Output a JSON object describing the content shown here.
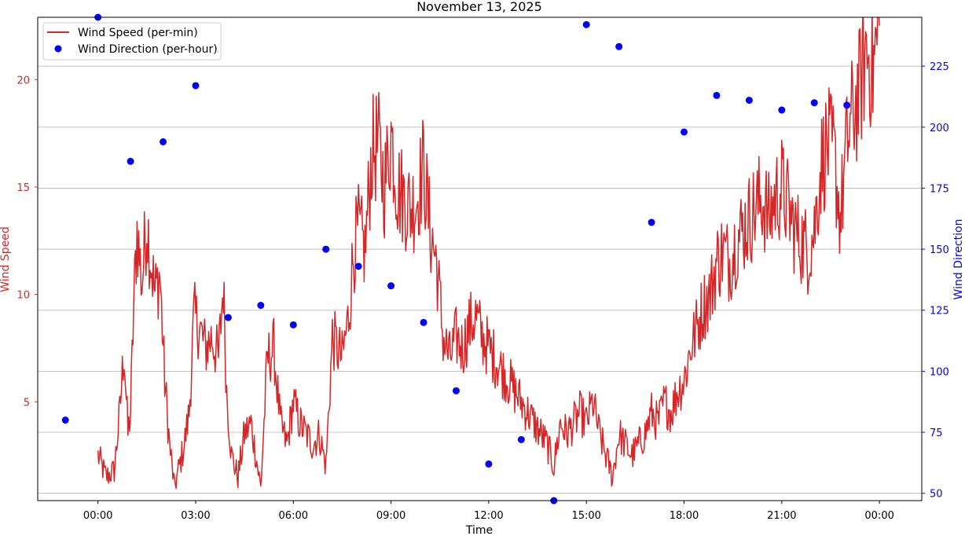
{
  "chart_data": {
    "type": "line",
    "title": "November 13, 2025",
    "xlabel": "Time",
    "ylabel_left": "Wind Speed",
    "ylabel_right": "Wind Direction",
    "x_range_hours": [
      -1.85,
      25.3
    ],
    "x_ticks": [
      {
        "hour": 0,
        "label": "00:00"
      },
      {
        "hour": 3,
        "label": "03:00"
      },
      {
        "hour": 6,
        "label": "06:00"
      },
      {
        "hour": 9,
        "label": "09:00"
      },
      {
        "hour": 12,
        "label": "12:00"
      },
      {
        "hour": 15,
        "label": "15:00"
      },
      {
        "hour": 18,
        "label": "18:00"
      },
      {
        "hour": 21,
        "label": "21:00"
      },
      {
        "hour": 24,
        "label": "00:00"
      }
    ],
    "y_left": {
      "range": [
        0.4,
        22.9
      ],
      "ticks": [
        5,
        10,
        15,
        20
      ],
      "color": "#d62728"
    },
    "y_right": {
      "range": [
        47,
        245
      ],
      "ticks": [
        50,
        75,
        100,
        125,
        150,
        175,
        200,
        225
      ],
      "color": "#0000ff"
    },
    "grid": "horizontal",
    "legend_position": "top-left",
    "series": [
      {
        "name": "Wind Speed (per-min)",
        "axis": "left",
        "color": "#d62728",
        "style": "line",
        "hours": [
          0.0,
          0.25,
          0.5,
          0.67,
          0.8,
          0.92,
          1.0,
          1.1,
          1.2,
          1.35,
          1.5,
          1.6,
          1.75,
          1.9,
          2.05,
          2.2,
          2.35,
          2.5,
          2.65,
          2.8,
          2.95,
          3.1,
          3.3,
          3.5,
          3.7,
          3.85,
          3.95,
          4.1,
          4.3,
          4.5,
          4.7,
          4.85,
          5.0,
          5.2,
          5.4,
          5.6,
          5.8,
          6.0,
          6.2,
          6.4,
          6.6,
          6.8,
          7.0,
          7.2,
          7.5,
          7.7,
          7.85,
          8.0,
          8.2,
          8.4,
          8.6,
          8.8,
          9.0,
          9.2,
          9.4,
          9.6,
          9.8,
          10.0,
          10.2,
          10.4,
          10.6,
          10.8,
          11.0,
          11.2,
          11.4,
          11.6,
          11.8,
          12.0,
          12.2,
          12.4,
          12.6,
          12.8,
          13.0,
          13.2,
          13.4,
          13.6,
          13.8,
          14.0,
          14.2,
          14.4,
          14.6,
          14.8,
          15.0,
          15.2,
          15.4,
          15.6,
          15.8,
          16.0,
          16.2,
          16.4,
          16.6,
          16.8,
          17.0,
          17.2,
          17.4,
          17.6,
          17.8,
          18.0,
          18.2,
          18.4,
          18.6,
          18.8,
          19.0,
          19.2,
          19.4,
          19.6,
          19.8,
          20.0,
          20.2,
          20.4,
          20.6,
          20.8,
          21.0,
          21.2,
          21.4,
          21.6,
          21.8,
          22.0,
          22.2,
          22.4,
          22.6,
          22.8,
          23.0,
          23.2,
          23.4,
          23.6,
          23.8,
          24.0
        ],
        "values": [
          2.5,
          1.5,
          1.8,
          4.5,
          7.5,
          3.5,
          4.5,
          9.5,
          13.0,
          10.5,
          13.5,
          12.0,
          10.0,
          11.0,
          6.0,
          3.0,
          1.0,
          2.0,
          3.0,
          4.5,
          9.0,
          8.5,
          7.5,
          8.0,
          7.0,
          10.5,
          5.5,
          2.5,
          1.5,
          3.5,
          4.0,
          2.5,
          1.0,
          7.0,
          7.5,
          4.0,
          3.0,
          5.0,
          4.0,
          3.5,
          3.0,
          3.5,
          2.0,
          8.0,
          7.0,
          9.0,
          12.0,
          13.0,
          12.0,
          16.5,
          17.0,
          15.0,
          17.5,
          15.0,
          14.5,
          14.0,
          14.5,
          16.0,
          13.0,
          11.5,
          8.0,
          7.0,
          8.0,
          7.5,
          8.5,
          9.0,
          8.0,
          7.5,
          7.0,
          6.5,
          6.0,
          5.5,
          5.0,
          4.5,
          4.0,
          3.5,
          3.0,
          2.0,
          4.0,
          3.5,
          4.0,
          4.5,
          4.0,
          5.0,
          3.5,
          2.5,
          1.5,
          3.5,
          3.0,
          2.5,
          3.0,
          3.5,
          4.5,
          4.0,
          5.0,
          4.5,
          5.5,
          6.0,
          7.5,
          8.5,
          9.5,
          10.0,
          11.5,
          12.0,
          11.5,
          12.5,
          13.0,
          13.5,
          14.0,
          14.5,
          13.5,
          14.5,
          15.0,
          14.0,
          13.0,
          12.5,
          12.0,
          13.0,
          16.0,
          17.0,
          16.5,
          13.5,
          17.0,
          18.5,
          19.5,
          21.5,
          20.5,
          22.5
        ]
      },
      {
        "name": "Wind Direction (per-hour)",
        "axis": "right",
        "color": "#0000ff",
        "style": "scatter",
        "hours": [
          -1,
          0,
          1,
          2,
          3,
          4,
          5,
          6,
          7,
          8,
          9,
          10,
          11,
          12,
          13,
          14,
          15,
          16,
          17,
          18,
          19,
          20,
          21,
          22,
          23
        ],
        "values": [
          80,
          245,
          186,
          194,
          217,
          122,
          127,
          119,
          150,
          143,
          135,
          120,
          92,
          62,
          72,
          47,
          242,
          233,
          161,
          198,
          213,
          211,
          207,
          210,
          209
        ]
      }
    ]
  }
}
